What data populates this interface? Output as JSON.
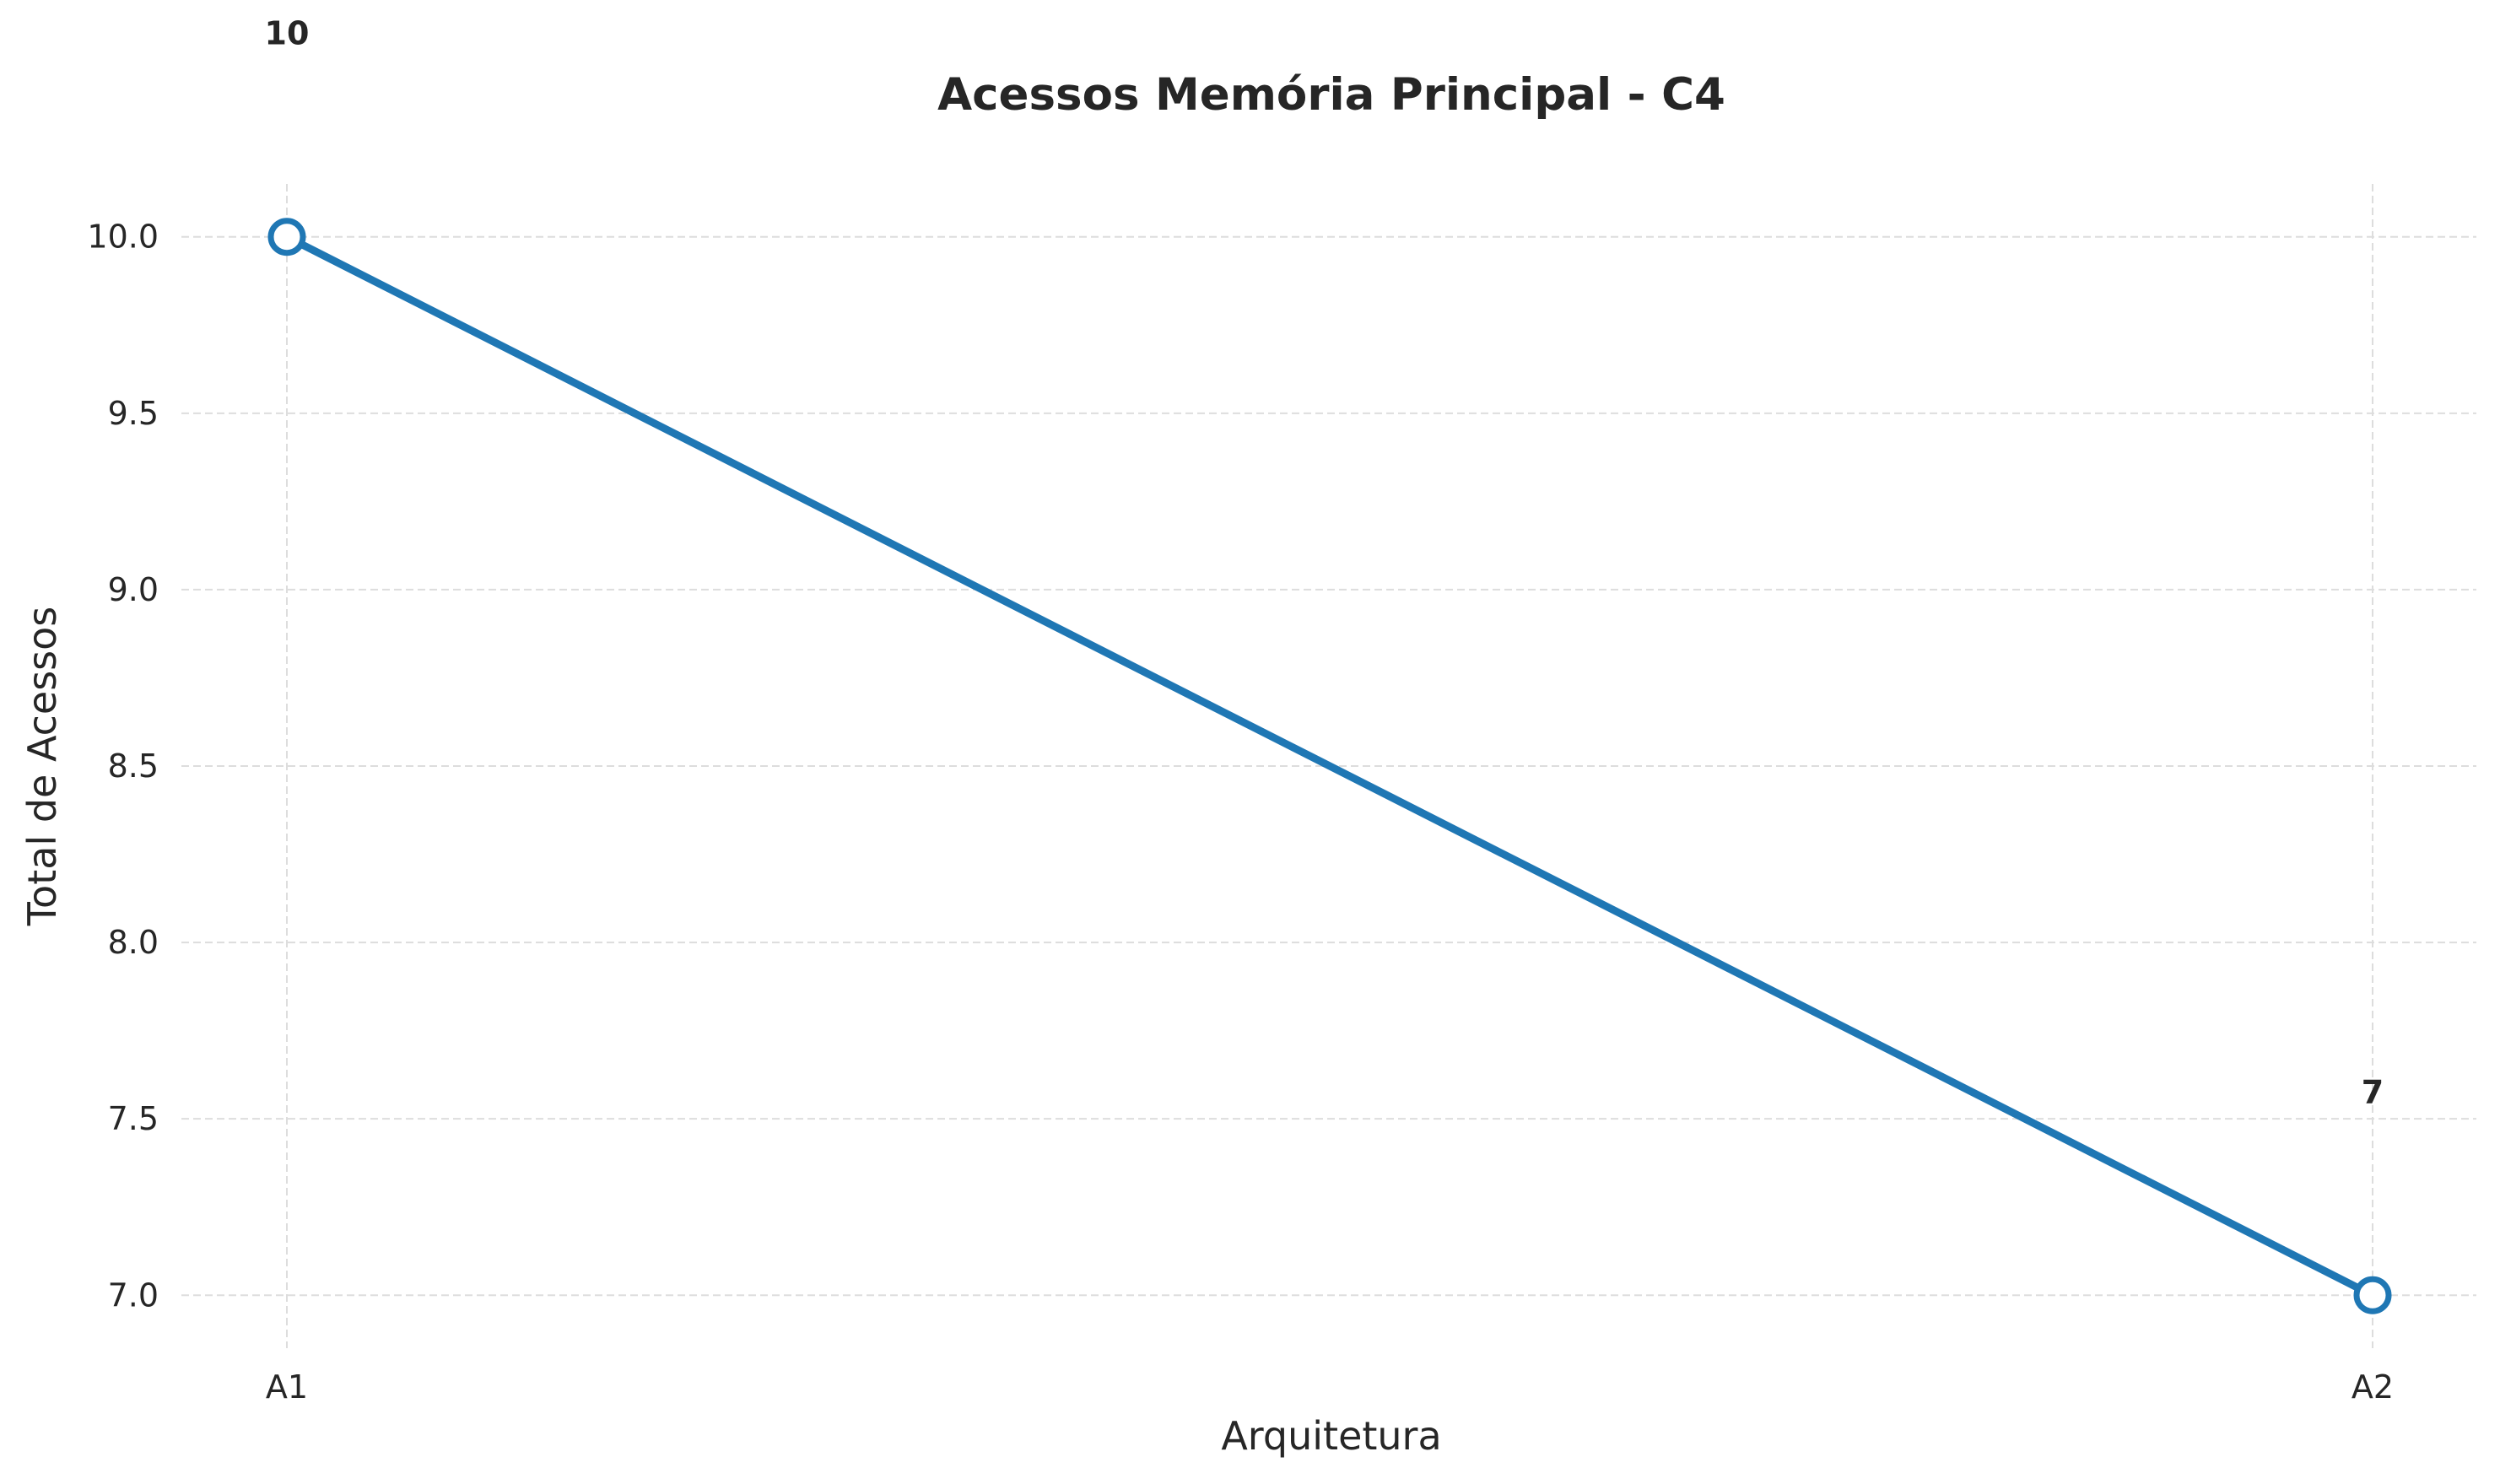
{
  "chart_data": {
    "type": "line",
    "title": "Acessos Memória Principal - C4",
    "xlabel": "Arquitetura",
    "ylabel": "Total de Acessos",
    "categories": [
      "A1",
      "A2"
    ],
    "series": [
      {
        "values": [
          10,
          7
        ],
        "data_labels": [
          "10",
          "7"
        ],
        "color": "#1f77b4"
      }
    ],
    "yticks": [
      7.0,
      7.5,
      8.0,
      8.5,
      9.0,
      9.5,
      10.0
    ],
    "ytick_labels": [
      "7.0",
      "7.5",
      "8.0",
      "8.5",
      "9.0",
      "9.5",
      "10.0"
    ],
    "ylim": [
      6.85,
      10.15
    ],
    "grid": true,
    "marker": "hollow-circle",
    "legend": "none"
  }
}
